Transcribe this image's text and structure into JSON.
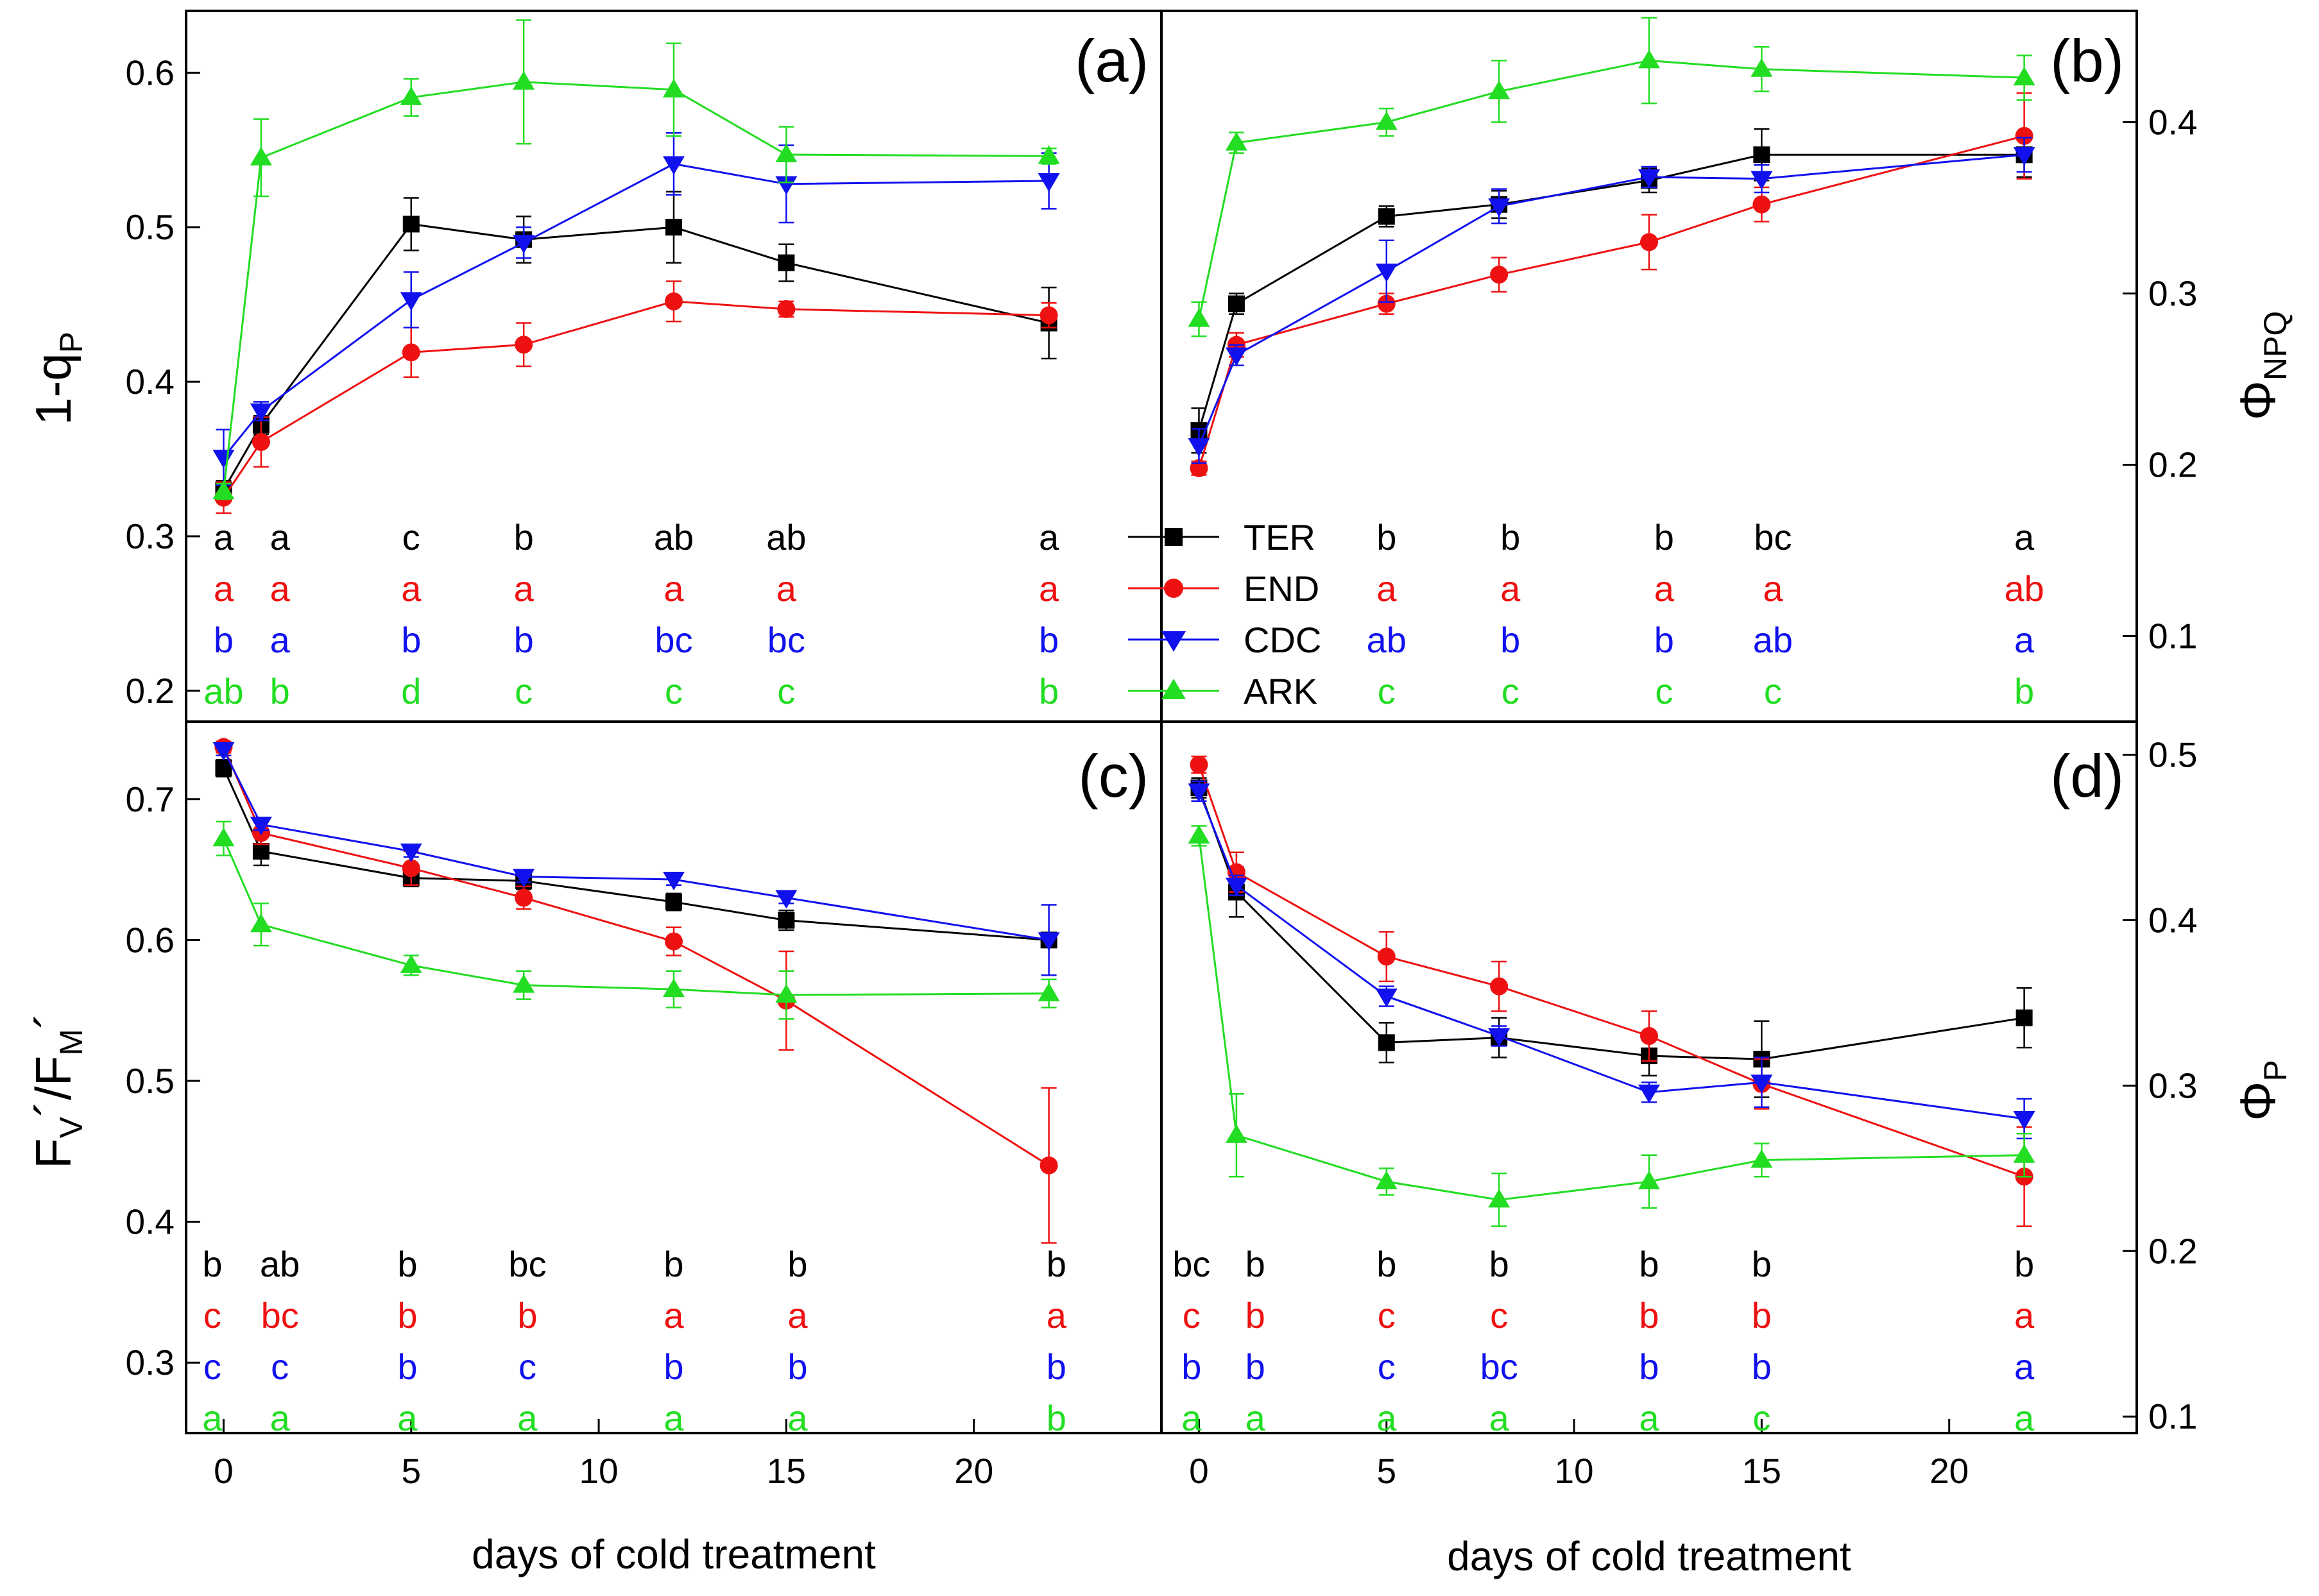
{
  "colors": {
    "TER": "#000000",
    "END": "#ee1111",
    "CDC": "#1111ee",
    "ARK": "#22dd22"
  },
  "legend": [
    {
      "key": "TER",
      "label": "TER",
      "marker": "square"
    },
    {
      "key": "END",
      "label": "END",
      "marker": "circle"
    },
    {
      "key": "CDC",
      "label": "CDC",
      "marker": "triangle-down"
    },
    {
      "key": "ARK",
      "label": "ARK",
      "marker": "triangle-up"
    }
  ],
  "axes": {
    "xlabel": "days of cold treatment",
    "x_ticks": [
      "0",
      "5",
      "10",
      "15",
      "20"
    ],
    "left_top_ylabel": {
      "main": "1-q",
      "sub": "P"
    },
    "left_bottom_ylabel": {
      "main": "F",
      "sub1": "V",
      "mid": "´/F",
      "sub2": "M",
      "end": "´"
    },
    "right_top_ylabel": {
      "main": "Φ",
      "sub": "NPQ"
    },
    "right_bottom_ylabel": {
      "main": "Φ",
      "sub": "P"
    },
    "ticks_a": [
      "0.2",
      "0.3",
      "0.4",
      "0.5",
      "0.6"
    ],
    "ticks_b": [
      "0.1",
      "0.2",
      "0.3",
      "0.4"
    ],
    "ticks_c": [
      "0.3",
      "0.4",
      "0.5",
      "0.6",
      "0.7"
    ],
    "ticks_d": [
      "0.1",
      "0.2",
      "0.3",
      "0.4",
      "0.5"
    ]
  },
  "chart_data": [
    {
      "panel": "(a)",
      "type": "line",
      "xlim": [
        -1,
        25
      ],
      "ylim": [
        0.18,
        0.64
      ],
      "ylabel": "1-qP",
      "xlabel": "days of cold treatment",
      "x": [
        0,
        1,
        5,
        8,
        12,
        15,
        22
      ],
      "series": [
        {
          "name": "TER",
          "values": [
            0.33,
            0.372,
            0.502,
            0.492,
            0.5,
            0.477,
            0.438
          ],
          "errors": [
            0.006,
            0.006,
            0.017,
            0.015,
            0.023,
            0.012,
            0.023
          ]
        },
        {
          "name": "END",
          "values": [
            0.325,
            0.361,
            0.419,
            0.424,
            0.452,
            0.447,
            0.443
          ],
          "errors": [
            0.01,
            0.016,
            0.016,
            0.014,
            0.013,
            0.005,
            0.008
          ]
        },
        {
          "name": "CDC",
          "values": [
            0.351,
            0.381,
            0.453,
            0.49,
            0.541,
            0.528,
            0.53
          ],
          "errors": [
            0.018,
            0.006,
            0.018,
            0.01,
            0.02,
            0.025,
            0.018
          ]
        },
        {
          "name": "ARK",
          "values": [
            0.329,
            0.545,
            0.584,
            0.594,
            0.589,
            0.547,
            0.546
          ],
          "errors": [
            0.005,
            0.025,
            0.012,
            0.04,
            0.03,
            0.018,
            0.005
          ]
        }
      ],
      "letters": [
        {
          "x": 0,
          "TER": "a",
          "END": "a",
          "CDC": "b",
          "ARK": "ab"
        },
        {
          "x": 1.5,
          "TER": "a",
          "END": "a",
          "CDC": "a",
          "ARK": "b"
        },
        {
          "x": 5,
          "TER": "c",
          "END": "a",
          "CDC": "b",
          "ARK": "d"
        },
        {
          "x": 8,
          "TER": "b",
          "END": "a",
          "CDC": "b",
          "ARK": "c"
        },
        {
          "x": 12,
          "TER": "ab",
          "END": "a",
          "CDC": "bc",
          "ARK": "c"
        },
        {
          "x": 15,
          "TER": "ab",
          "END": "a",
          "CDC": "bc",
          "ARK": "c"
        },
        {
          "x": 22,
          "TER": "a",
          "END": "a",
          "CDC": "b",
          "ARK": "b"
        }
      ]
    },
    {
      "panel": "(b)",
      "type": "line",
      "xlim": [
        -1,
        25
      ],
      "ylim": [
        0.05,
        0.465
      ],
      "ylabel": "ΦNPQ",
      "xlabel": "days of cold treatment",
      "x": [
        0,
        1,
        5,
        8,
        12,
        15,
        22
      ],
      "series": [
        {
          "name": "TER",
          "values": [
            0.22,
            0.294,
            0.345,
            0.352,
            0.366,
            0.381,
            0.381
          ],
          "errors": [
            0.013,
            0.006,
            0.006,
            0.008,
            0.007,
            0.015,
            0.013
          ]
        },
        {
          "name": "END",
          "values": [
            0.198,
            0.27,
            0.294,
            0.311,
            0.33,
            0.352,
            0.392
          ],
          "errors": [
            0.004,
            0.007,
            0.006,
            0.01,
            0.016,
            0.01,
            0.025
          ]
        },
        {
          "name": "CDC",
          "values": [
            0.211,
            0.264,
            0.313,
            0.351,
            0.368,
            0.367,
            0.381
          ],
          "errors": [
            0.01,
            0.006,
            0.018,
            0.01,
            0.006,
            0.008,
            0.01
          ]
        },
        {
          "name": "ARK",
          "values": [
            0.285,
            0.388,
            0.4,
            0.418,
            0.436,
            0.431,
            0.426
          ],
          "errors": [
            0.01,
            0.006,
            0.008,
            0.018,
            0.025,
            0.013,
            0.013
          ]
        }
      ],
      "letters": [
        {
          "x": 5,
          "TER": "b",
          "END": "a",
          "CDC": "ab",
          "ARK": "c"
        },
        {
          "x": 8.3,
          "TER": "b",
          "END": "a",
          "CDC": "b",
          "ARK": "c"
        },
        {
          "x": 12.4,
          "TER": "b",
          "END": "a",
          "CDC": "b",
          "ARK": "c"
        },
        {
          "x": 15.3,
          "TER": "bc",
          "END": "a",
          "CDC": "ab",
          "ARK": "c"
        },
        {
          "x": 22,
          "TER": "a",
          "END": "ab",
          "CDC": "a",
          "ARK": "b"
        }
      ]
    },
    {
      "panel": "(c)",
      "type": "line",
      "xlim": [
        -1,
        25
      ],
      "ylim": [
        0.25,
        0.755
      ],
      "ylabel": "FV´/FM´",
      "xlabel": "days of cold treatment",
      "x": [
        0,
        1,
        5,
        8,
        12,
        15,
        22
      ],
      "series": [
        {
          "name": "TER",
          "values": [
            0.722,
            0.663,
            0.644,
            0.642,
            0.627,
            0.614,
            0.6
          ],
          "errors": [
            0.006,
            0.01,
            0.006,
            0.006,
            0.006,
            0.007,
            0.005
          ]
        },
        {
          "name": "END",
          "values": [
            0.737,
            0.676,
            0.651,
            0.63,
            0.599,
            0.557,
            0.44
          ],
          "errors": [
            0.004,
            0.008,
            0.012,
            0.008,
            0.01,
            0.035,
            0.055
          ]
        },
        {
          "name": "CDC",
          "values": [
            0.735,
            0.682,
            0.663,
            0.645,
            0.643,
            0.63,
            0.6
          ],
          "errors": [
            0.004,
            0.004,
            0.004,
            0.004,
            0.004,
            0.004,
            0.025
          ]
        },
        {
          "name": "ARK",
          "values": [
            0.672,
            0.611,
            0.582,
            0.568,
            0.565,
            0.561,
            0.562
          ],
          "errors": [
            0.012,
            0.015,
            0.007,
            0.01,
            0.013,
            0.017,
            0.01
          ]
        }
      ],
      "letters": [
        {
          "x": -0.3,
          "TER": "b",
          "END": "c",
          "CDC": "c",
          "ARK": "a"
        },
        {
          "x": 1.5,
          "TER": "ab",
          "END": "bc",
          "CDC": "c",
          "ARK": "a"
        },
        {
          "x": 4.9,
          "TER": "b",
          "END": "b",
          "CDC": "b",
          "ARK": "a"
        },
        {
          "x": 8.1,
          "TER": "bc",
          "END": "b",
          "CDC": "c",
          "ARK": "a"
        },
        {
          "x": 12,
          "TER": "b",
          "END": "a",
          "CDC": "b",
          "ARK": "a"
        },
        {
          "x": 15.3,
          "TER": "b",
          "END": "a",
          "CDC": "b",
          "ARK": "a"
        },
        {
          "x": 22.2,
          "TER": "b",
          "END": "a",
          "CDC": "b",
          "ARK": "b"
        }
      ]
    },
    {
      "panel": "(d)",
      "type": "line",
      "xlim": [
        -1,
        25
      ],
      "ylim": [
        0.09,
        0.52
      ],
      "ylabel": "ΦP",
      "xlabel": "days of cold treatment",
      "x": [
        0,
        1,
        5,
        8,
        12,
        15,
        22
      ],
      "series": [
        {
          "name": "TER",
          "values": [
            0.48,
            0.417,
            0.326,
            0.329,
            0.318,
            0.316,
            0.341
          ],
          "errors": [
            0.006,
            0.015,
            0.012,
            0.012,
            0.012,
            0.023,
            0.018
          ]
        },
        {
          "name": "END",
          "values": [
            0.494,
            0.429,
            0.378,
            0.36,
            0.33,
            0.301,
            0.245
          ],
          "errors": [
            0.005,
            0.012,
            0.015,
            0.015,
            0.015,
            0.015,
            0.03
          ]
        },
        {
          "name": "CDC",
          "values": [
            0.478,
            0.421,
            0.354,
            0.33,
            0.296,
            0.302,
            0.28
          ],
          "errors": [
            0.006,
            0.006,
            0.006,
            0.006,
            0.006,
            0.015,
            0.012
          ]
        },
        {
          "name": "ARK",
          "values": [
            0.451,
            0.27,
            0.242,
            0.231,
            0.242,
            0.255,
            0.258
          ],
          "errors": [
            0.006,
            0.025,
            0.008,
            0.016,
            0.016,
            0.01,
            0.013
          ]
        }
      ],
      "letters": [
        {
          "x": -0.2,
          "TER": "bc",
          "END": "c",
          "CDC": "b",
          "ARK": "a"
        },
        {
          "x": 1.5,
          "TER": "b",
          "END": "b",
          "CDC": "b",
          "ARK": "a"
        },
        {
          "x": 5,
          "TER": "b",
          "END": "c",
          "CDC": "c",
          "ARK": "a"
        },
        {
          "x": 8,
          "TER": "b",
          "END": "c",
          "CDC": "bc",
          "ARK": "a"
        },
        {
          "x": 12,
          "TER": "b",
          "END": "b",
          "CDC": "b",
          "ARK": "a"
        },
        {
          "x": 15,
          "TER": "b",
          "END": "b",
          "CDC": "b",
          "ARK": "c"
        },
        {
          "x": 22,
          "TER": "b",
          "END": "a",
          "CDC": "a",
          "ARK": "a"
        }
      ]
    }
  ]
}
